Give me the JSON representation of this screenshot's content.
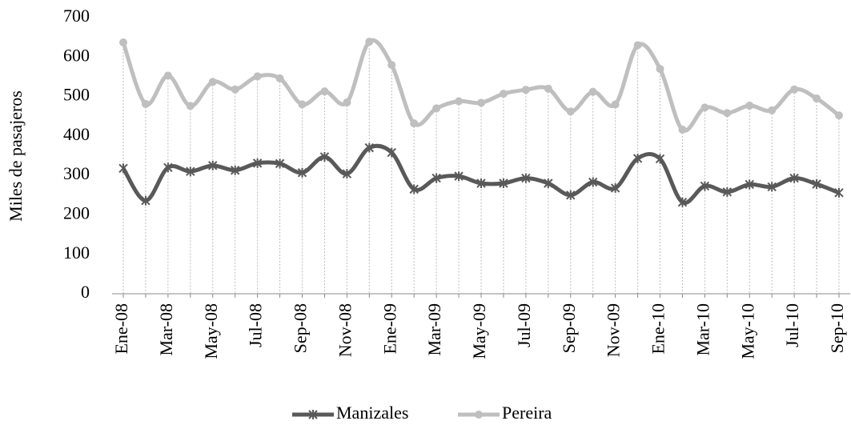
{
  "chart_data": {
    "type": "line",
    "y_label": "Miles de pasajeros",
    "categories": [
      "Ene-08",
      null,
      "Mar-08",
      null,
      "May-08",
      null,
      "Jul-08",
      null,
      "Sep-08",
      null,
      "Nov-08",
      null,
      "Ene-09",
      null,
      "Mar-09",
      null,
      "May-09",
      null,
      "Jul-09",
      null,
      "Sep-09",
      null,
      "Nov-09",
      null,
      "Ene-10",
      null,
      "Mar-10",
      null,
      "May-10",
      null,
      "Jul-10",
      null,
      "Sep-10"
    ],
    "series": [
      {
        "name": "Manizales",
        "color": "#595959",
        "marker": "star",
        "values": [
          318,
          236,
          320,
          310,
          325,
          313,
          331,
          330,
          307,
          347,
          304,
          370,
          358,
          265,
          293,
          298,
          280,
          280,
          293,
          280,
          250,
          283,
          268,
          343,
          342,
          232,
          273,
          258,
          277,
          271,
          293,
          278,
          256
        ]
      },
      {
        "name": "Pereira",
        "color": "#bfbfbf",
        "marker": "circle",
        "values": [
          637,
          481,
          553,
          476,
          537,
          518,
          551,
          546,
          480,
          513,
          485,
          639,
          580,
          432,
          470,
          488,
          484,
          507,
          517,
          520,
          462,
          512,
          480,
          630,
          570,
          416,
          472,
          458,
          477,
          465,
          518,
          495,
          452
        ]
      }
    ],
    "ylim": [
      0,
      700
    ],
    "yticks": [
      0,
      100,
      200,
      300,
      400,
      500,
      600,
      700
    ],
    "drop_lines": true,
    "legend": "bottom"
  }
}
